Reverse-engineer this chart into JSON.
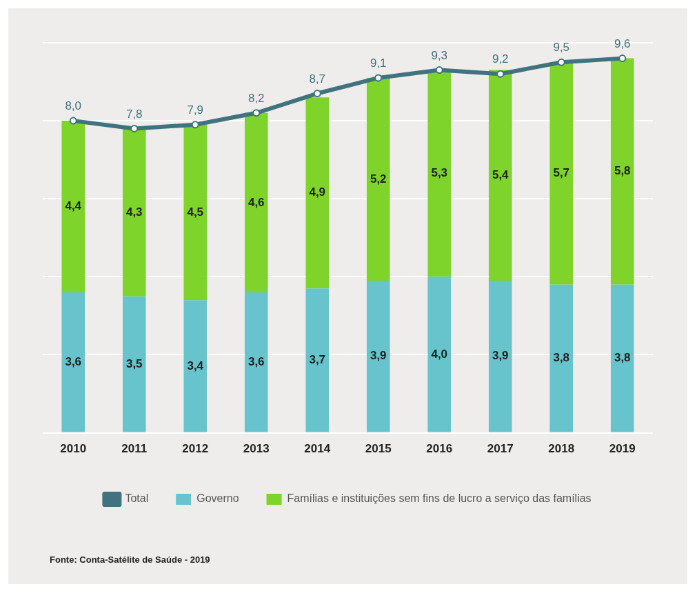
{
  "chart_data": {
    "type": "bar",
    "stacked": true,
    "categories": [
      "2010",
      "2011",
      "2012",
      "2013",
      "2014",
      "2015",
      "2016",
      "2017",
      "2018",
      "2019"
    ],
    "series": [
      {
        "name": "Total",
        "type": "line",
        "color": "#41737f",
        "values": [
          8.0,
          7.8,
          7.9,
          8.2,
          8.7,
          9.1,
          9.3,
          9.2,
          9.5,
          9.6
        ],
        "value_labels": [
          "8,0",
          "7,8",
          "7,9",
          "8,2",
          "8,7",
          "9,1",
          "9,3",
          "9,2",
          "9,5",
          "9,6"
        ]
      },
      {
        "name": "Governo",
        "color": "#67c4cc",
        "values": [
          3.6,
          3.5,
          3.4,
          3.6,
          3.7,
          3.9,
          4.0,
          3.9,
          3.8,
          3.8
        ],
        "value_labels": [
          "3,6",
          "3,5",
          "3,4",
          "3,6",
          "3,7",
          "3,9",
          "4,0",
          "3,9",
          "3,8",
          "3,8"
        ]
      },
      {
        "name": "Famílias e instituições sem fins de lucro a serviço das famílias",
        "color": "#7ed42a",
        "values": [
          4.4,
          4.3,
          4.5,
          4.6,
          4.9,
          5.2,
          5.3,
          5.4,
          5.7,
          5.8
        ],
        "value_labels": [
          "4,4",
          "4,3",
          "4,5",
          "4,6",
          "4,9",
          "5,2",
          "5,3",
          "5,4",
          "5,7",
          "5,8"
        ]
      }
    ],
    "tick_labels": "x",
    "grid": "y",
    "legend": "bottom",
    "marker": "circle",
    "annotations": [
      "Fonte: Conta-Satélite de Saúde - 2019"
    ]
  }
}
